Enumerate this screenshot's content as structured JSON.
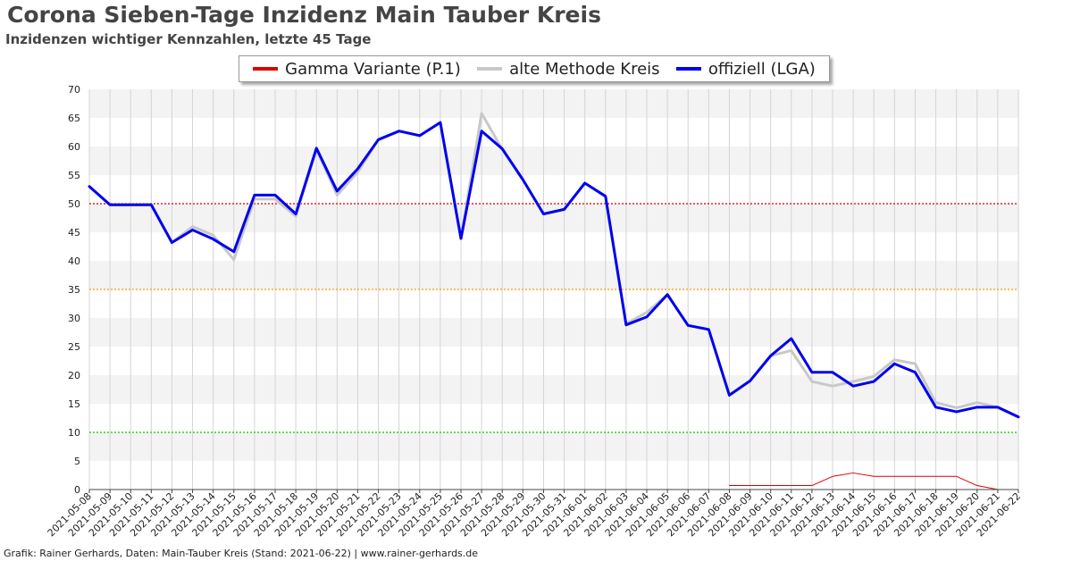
{
  "header": {
    "title": "Corona Sieben-Tage Inzidenz Main Tauber Kreis",
    "subtitle": "Inzidenzen wichtiger Kennzahlen, letzte 45 Tage"
  },
  "footer": {
    "credit": "Grafik: Rainer Gerhards, Daten: Main-Tauber Kreis (Stand: 2021-06-22) | www.rainer-gerhards.de"
  },
  "chart_data": {
    "type": "line",
    "title": "Corona Sieben-Tage Inzidenz Main Tauber Kreis",
    "subtitle": "Inzidenzen wichtiger Kennzahlen, letzte 45 Tage",
    "xlabel": "",
    "ylabel": "",
    "ylim": [
      0,
      70
    ],
    "yticks": [
      0,
      5,
      10,
      15,
      20,
      25,
      30,
      35,
      40,
      45,
      50,
      55,
      60,
      65,
      70
    ],
    "grid": true,
    "legend_position": "top-center",
    "categories": [
      "2021-05-08",
      "2021-05-09",
      "2021-05-10",
      "2021-05-11",
      "2021-05-12",
      "2021-05-13",
      "2021-05-14",
      "2021-05-15",
      "2021-05-16",
      "2021-05-17",
      "2021-05-18",
      "2021-05-19",
      "2021-05-20",
      "2021-05-21",
      "2021-05-22",
      "2021-05-23",
      "2021-05-24",
      "2021-05-25",
      "2021-05-26",
      "2021-05-27",
      "2021-05-28",
      "2021-05-29",
      "2021-05-30",
      "2021-05-31",
      "2021-06-01",
      "2021-06-02",
      "2021-06-03",
      "2021-06-04",
      "2021-06-05",
      "2021-06-06",
      "2021-06-07",
      "2021-06-08",
      "2021-06-09",
      "2021-06-10",
      "2021-06-11",
      "2021-06-12",
      "2021-06-13",
      "2021-06-14",
      "2021-06-15",
      "2021-06-16",
      "2021-06-17",
      "2021-06-18",
      "2021-06-19",
      "2021-06-20",
      "2021-06-21",
      "2021-06-22"
    ],
    "reference_lines": [
      {
        "value": 50,
        "color": "#cc0000"
      },
      {
        "value": 35,
        "color": "#ff9900"
      },
      {
        "value": 10,
        "color": "#00cc00"
      }
    ],
    "series": [
      {
        "name": "Gamma Variante (P.1)",
        "color": "#dd0000",
        "width": 1,
        "values": [
          null,
          null,
          null,
          null,
          null,
          null,
          null,
          null,
          null,
          null,
          null,
          null,
          null,
          null,
          null,
          null,
          null,
          null,
          null,
          null,
          null,
          null,
          null,
          null,
          null,
          null,
          null,
          null,
          null,
          null,
          null,
          0.7,
          0.7,
          0.7,
          0.7,
          0.7,
          2.3,
          2.9,
          2.3,
          2.3,
          2.3,
          2.3,
          2.3,
          0.7,
          0,
          null
        ]
      },
      {
        "name": "alte Methode Kreis",
        "color": "#c8c8c8",
        "width": 3,
        "values": [
          53,
          49.8,
          49.8,
          49.8,
          43.2,
          46,
          44.5,
          40.2,
          50.8,
          50.8,
          47.8,
          59.5,
          51.5,
          55.5,
          61.2,
          62.7,
          61.9,
          64.2,
          43.9,
          65.8,
          59.5,
          54.2,
          48.2,
          49,
          53.6,
          51.3,
          29,
          31,
          34.1,
          28.7,
          28,
          16.5,
          19,
          23.4,
          24.3,
          18.9,
          18.1,
          18.9,
          19.8,
          22.7,
          22,
          15.2,
          14.3,
          15.2,
          14.4,
          12.7
        ]
      },
      {
        "name": "offiziell (LGA)",
        "color": "#0000ee",
        "width": 3,
        "values": [
          53,
          49.8,
          49.8,
          49.8,
          43.2,
          45.4,
          43.8,
          41.6,
          51.5,
          51.5,
          48.2,
          59.7,
          52.2,
          56.1,
          61.2,
          62.7,
          61.9,
          64.2,
          43.9,
          62.7,
          59.6,
          54.2,
          48.2,
          49,
          53.6,
          51.3,
          28.8,
          30.2,
          34.1,
          28.7,
          28,
          16.5,
          19,
          23.4,
          26.4,
          20.5,
          20.5,
          18.1,
          18.9,
          22,
          20.5,
          14.4,
          13.6,
          14.4,
          14.4,
          12.7
        ]
      }
    ]
  }
}
